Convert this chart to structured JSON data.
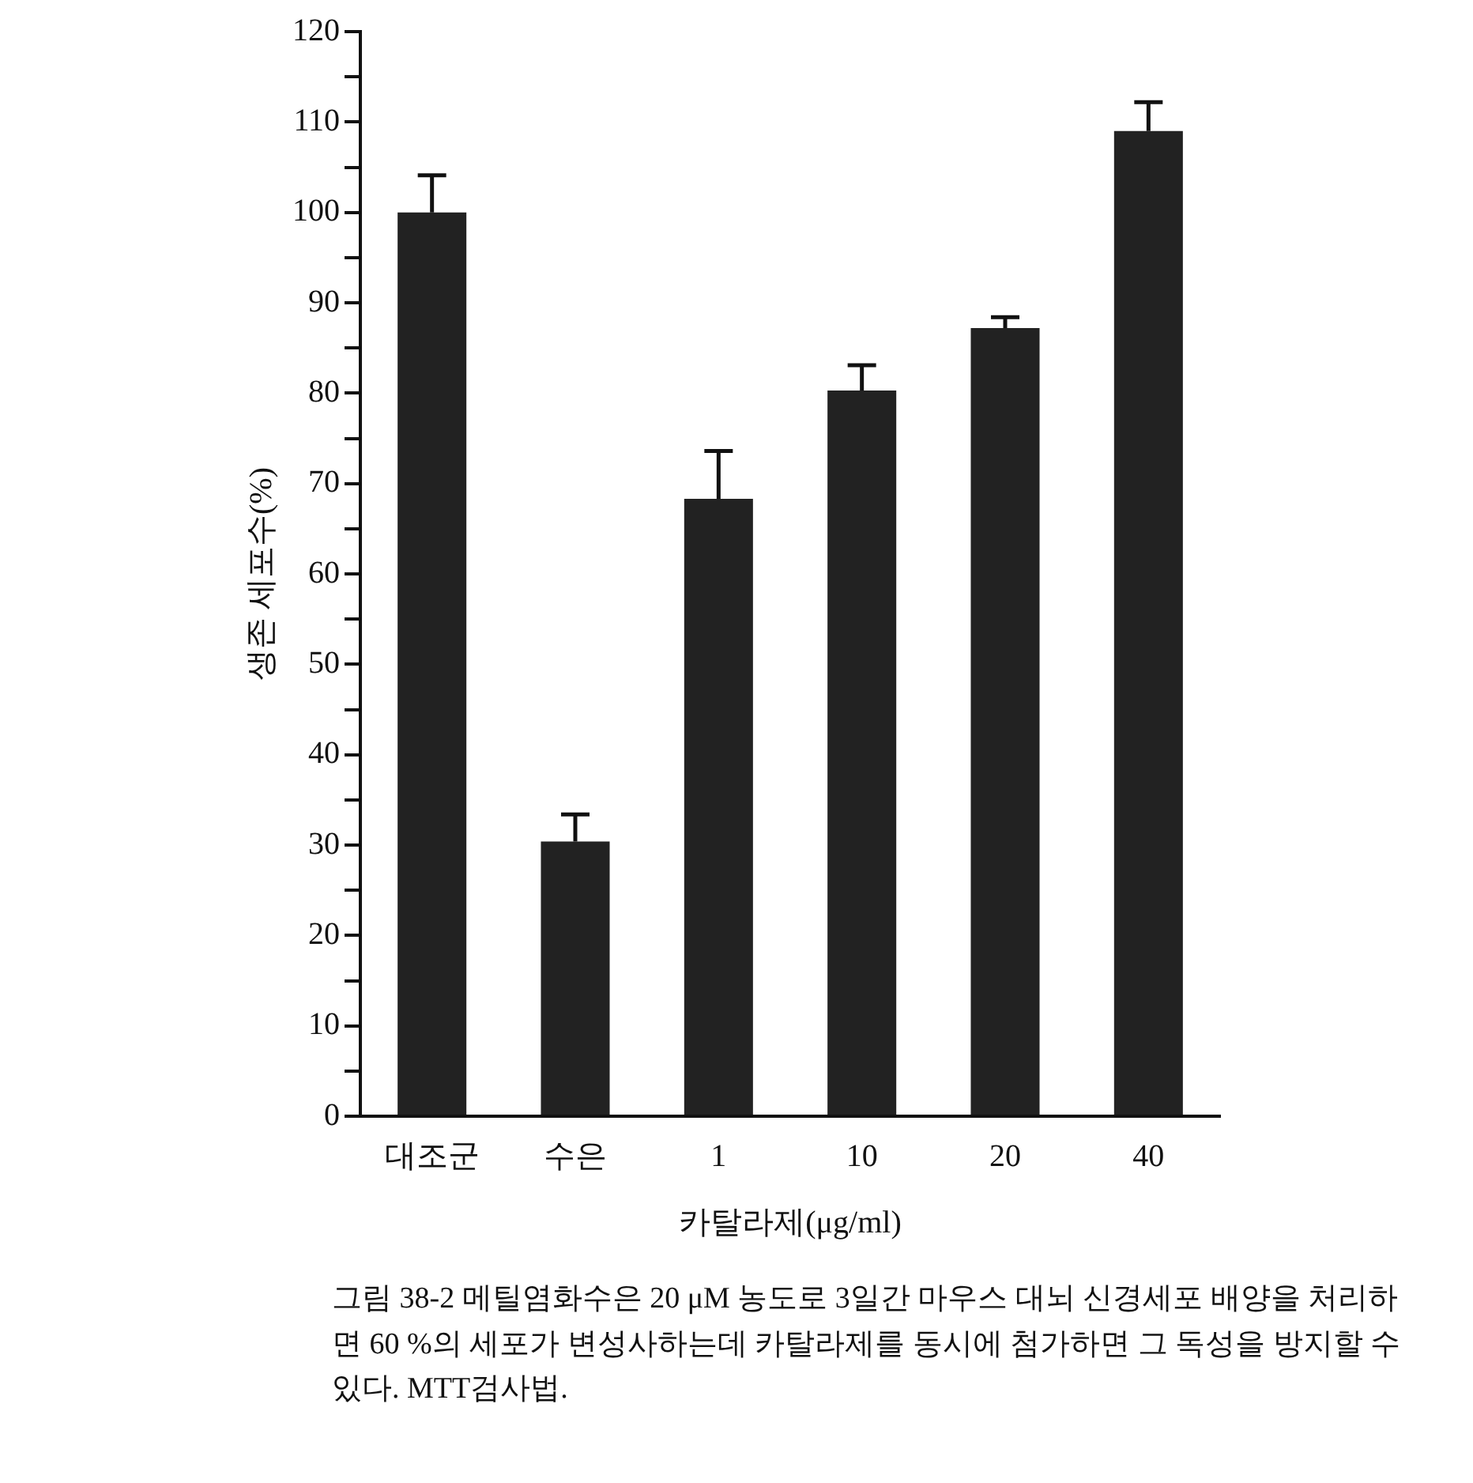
{
  "chart_data": {
    "type": "bar",
    "categories": [
      "대조군",
      "수은",
      "1",
      "10",
      "20",
      "40"
    ],
    "values": [
      100,
      30.4,
      68.3,
      80.3,
      87.2,
      109
    ],
    "errors": [
      [
        100,
        104.1
      ],
      [
        30.4,
        33.4
      ],
      [
        68.3,
        73.6
      ],
      [
        80.3,
        83.1
      ],
      [
        87.2,
        88.4
      ],
      [
        109,
        112.2
      ]
    ],
    "color": "#222222",
    "xlabel": "카탈라제(μg/ml)",
    "ylabel": "생존 세포수(%)",
    "ylim": [
      0,
      120
    ],
    "yticks": [
      0,
      {
        "value": 5,
        "label": null
      },
      10,
      {
        "value": 15,
        "label": null
      },
      20,
      {
        "value": 25,
        "label": null
      },
      30,
      {
        "value": 35,
        "label": null
      },
      40,
      {
        "value": 45,
        "label": null
      },
      50,
      {
        "value": 55,
        "label": null
      },
      60,
      {
        "value": 65,
        "label": null
      },
      70,
      {
        "value": 75,
        "label": null
      },
      80,
      {
        "value": 85,
        "label": null
      },
      90,
      {
        "value": 95,
        "label": null
      },
      100,
      {
        "value": 105,
        "label": null
      },
      110,
      {
        "value": 115,
        "label": null
      },
      120
    ],
    "grid": false,
    "legend": false,
    "annotations": [
      "그림 38-2  메틸염화수은 20 μM 농도로 3일간 마우스 대뇌 신경세포 배양을 처리하면 60 %의 세포가 변성사하는데 카탈라제를 동시에 첨가하면 그 독성을 방지할 수 있다. MTT검사법."
    ]
  }
}
